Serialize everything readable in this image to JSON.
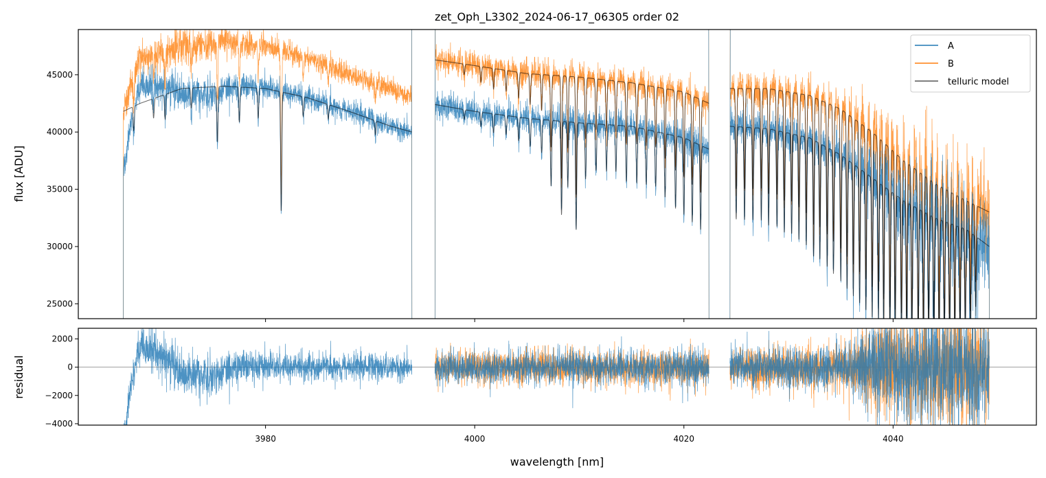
{
  "chart_data": {
    "type": "line",
    "title": "zet_Oph_L3302_2024-06-17_06305  order 02",
    "xlabel": "wavelength [nm]",
    "panels": [
      {
        "name": "flux",
        "ylabel": "flux [ADU]",
        "ylim": [
          23700,
          48950
        ],
        "yticks": [
          25000,
          30000,
          35000,
          40000,
          45000
        ],
        "ytick_labels": [
          "25000",
          "30000",
          "35000",
          "40000",
          "45000"
        ]
      },
      {
        "name": "residual",
        "ylabel": "residual",
        "ylim": [
          -4100,
          2750
        ],
        "yticks": [
          -4000,
          -2000,
          0,
          2000
        ],
        "ytick_labels": [
          "−4000",
          "−2000",
          "0",
          "2000"
        ],
        "zero_line": true
      }
    ],
    "xlim": [
      3962.1,
      4053.7
    ],
    "xticks": [
      3980,
      4000,
      4020,
      4040
    ],
    "xtick_labels": [
      "3980",
      "4000",
      "4020",
      "4040"
    ],
    "legend": {
      "placement": "top-right",
      "entries": [
        {
          "label": "A",
          "color": "#1f77b4"
        },
        {
          "label": "B",
          "color": "#ff7f0e"
        },
        {
          "label": "telluric model",
          "color": "#555555"
        }
      ]
    },
    "segments": [
      {
        "range": [
          3966.4,
          3994.0
        ],
        "model_for": [
          "A"
        ],
        "residual_for": [
          "A"
        ],
        "contA": [
          [
            3966.4,
            41800
          ],
          [
            3968,
            42500
          ],
          [
            3972,
            43800
          ],
          [
            3976,
            44000
          ],
          [
            3980,
            43800
          ],
          [
            3984,
            43000
          ],
          [
            3988,
            41800
          ],
          [
            3992,
            40500
          ],
          [
            3994,
            40000
          ]
        ],
        "contB": [
          [
            3966.4,
            42000
          ],
          [
            3968,
            46500
          ],
          [
            3972,
            47500
          ],
          [
            3976,
            48000
          ],
          [
            3980,
            47500
          ],
          [
            3984,
            46500
          ],
          [
            3988,
            45000
          ],
          [
            3992,
            43800
          ],
          [
            3994,
            43000
          ]
        ],
        "noise": [
          [
            3966.4,
            600
          ],
          [
            3972,
            800
          ],
          [
            3980,
            500
          ],
          [
            3994,
            450
          ]
        ],
        "resid_offsetA": [
          [
            3966.4,
            -5200
          ],
          [
            3967.3,
            -600
          ],
          [
            3968.0,
            1500
          ],
          [
            3970,
            900
          ],
          [
            3972,
            -600
          ],
          [
            3975,
            -500
          ],
          [
            3977,
            100
          ],
          [
            3994,
            0
          ]
        ],
        "lines": [
          [
            3967.4,
            0.05
          ],
          [
            3969.3,
            0.04
          ],
          [
            3970.4,
            0.05
          ],
          [
            3972.9,
            0.04
          ],
          [
            3975.4,
            0.11
          ],
          [
            3977.5,
            0.07
          ],
          [
            3979.3,
            0.06
          ],
          [
            3981.5,
            0.24
          ],
          [
            3983.6,
            0.04
          ],
          [
            3986.0,
            0.03
          ],
          [
            3990.5,
            0.03
          ]
        ]
      },
      {
        "range": [
          3996.2,
          4022.4
        ],
        "model_for": [
          "A",
          "B"
        ],
        "residual_for": [
          "A",
          "B"
        ],
        "contA": [
          [
            3996.2,
            42400
          ],
          [
            4000,
            41800
          ],
          [
            4005,
            41200
          ],
          [
            4010,
            40800
          ],
          [
            4015,
            40500
          ],
          [
            4020,
            39500
          ],
          [
            4022.4,
            38500
          ]
        ],
        "contB": [
          [
            3996.2,
            46300
          ],
          [
            4000,
            45800
          ],
          [
            4005,
            45100
          ],
          [
            4010,
            44800
          ],
          [
            4015,
            44300
          ],
          [
            4020,
            43500
          ],
          [
            4022.4,
            42500
          ]
        ],
        "noise": [
          [
            3996.2,
            550
          ],
          [
            4022.4,
            650
          ]
        ],
        "lines": [
          [
            3999.0,
            0.02
          ],
          [
            4000.6,
            0.03
          ],
          [
            4001.8,
            0.04
          ],
          [
            4003.0,
            0.04
          ],
          [
            4004.2,
            0.05
          ],
          [
            4005.3,
            0.06
          ],
          [
            4006.4,
            0.07
          ],
          [
            4007.3,
            0.14
          ],
          [
            4008.3,
            0.2
          ],
          [
            4008.9,
            0.14
          ],
          [
            4009.7,
            0.23
          ],
          [
            4010.6,
            0.12
          ],
          [
            4011.6,
            0.1
          ],
          [
            4012.6,
            0.1
          ],
          [
            4013.5,
            0.1
          ],
          [
            4014.5,
            0.12
          ],
          [
            4015.5,
            0.12
          ],
          [
            4016.4,
            0.12
          ],
          [
            4017.3,
            0.12
          ],
          [
            4018.2,
            0.14
          ],
          [
            4019.2,
            0.16
          ],
          [
            4020.0,
            0.17
          ],
          [
            4020.8,
            0.18
          ],
          [
            4021.6,
            0.19
          ]
        ]
      },
      {
        "range": [
          4024.4,
          4049.2
        ],
        "model_for": [
          "A",
          "B"
        ],
        "residual_for": [
          "A",
          "B"
        ],
        "contA": [
          [
            4024.4,
            40500
          ],
          [
            4028,
            40300
          ],
          [
            4032,
            39500
          ],
          [
            4035,
            38000
          ],
          [
            4038,
            36000
          ],
          [
            4041,
            34000
          ],
          [
            4044,
            32500
          ],
          [
            4047,
            31500
          ],
          [
            4049.2,
            30000
          ]
        ],
        "contB": [
          [
            4024.4,
            43800
          ],
          [
            4028,
            43800
          ],
          [
            4032,
            43200
          ],
          [
            4035,
            42000
          ],
          [
            4038,
            40000
          ],
          [
            4041,
            37500
          ],
          [
            4044,
            35500
          ],
          [
            4047,
            34000
          ],
          [
            4049.2,
            33000
          ]
        ],
        "noise": [
          [
            4024.4,
            700
          ],
          [
            4035,
            800
          ],
          [
            4039,
            1800
          ],
          [
            4045,
            2300
          ],
          [
            4049.2,
            2000
          ]
        ],
        "lines": [
          [
            4025.0,
            0.2
          ],
          [
            4025.8,
            0.2
          ],
          [
            4026.6,
            0.2
          ],
          [
            4027.4,
            0.2
          ],
          [
            4028.1,
            0.21
          ],
          [
            4028.9,
            0.21
          ],
          [
            4029.6,
            0.22
          ],
          [
            4030.3,
            0.22
          ],
          [
            4031.0,
            0.23
          ],
          [
            4031.7,
            0.24
          ],
          [
            4032.4,
            0.26
          ],
          [
            4033.0,
            0.26
          ],
          [
            4033.7,
            0.27
          ],
          [
            4034.3,
            0.28
          ],
          [
            4035.0,
            0.29
          ],
          [
            4035.6,
            0.3
          ],
          [
            4036.2,
            0.31
          ],
          [
            4036.8,
            0.32
          ],
          [
            4037.4,
            0.33
          ],
          [
            4038.0,
            0.34
          ],
          [
            4038.6,
            0.34
          ],
          [
            4039.1,
            0.35
          ],
          [
            4039.7,
            0.36
          ],
          [
            4040.2,
            0.36
          ],
          [
            4040.8,
            0.36
          ],
          [
            4041.3,
            0.36
          ],
          [
            4041.8,
            0.36
          ],
          [
            4042.4,
            0.36
          ],
          [
            4042.9,
            0.36
          ],
          [
            4043.4,
            0.35
          ],
          [
            4043.9,
            0.35
          ],
          [
            4044.4,
            0.35
          ],
          [
            4044.9,
            0.34
          ],
          [
            4045.4,
            0.33
          ],
          [
            4045.9,
            0.33
          ],
          [
            4046.4,
            0.32
          ],
          [
            4046.9,
            0.3
          ],
          [
            4047.4,
            0.28
          ],
          [
            4047.9,
            0.2
          ]
        ]
      }
    ]
  }
}
